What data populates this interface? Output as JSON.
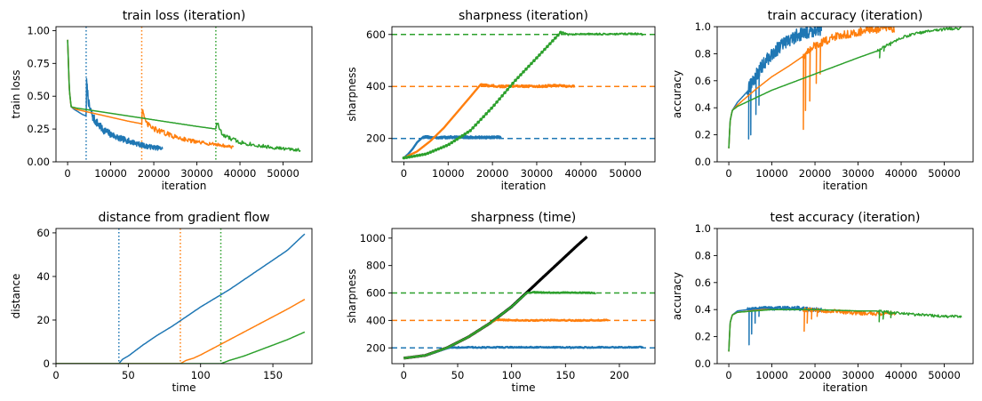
{
  "colors": {
    "blue": "#1f77b4",
    "orange": "#ff7f0e",
    "green": "#2ca02c",
    "black": "#000000"
  },
  "chart_data": [
    {
      "id": "train_loss",
      "type": "line",
      "title": "train loss (iteration)",
      "xlabel": "iteration",
      "ylabel": "train loss",
      "xlim": [
        -2700,
        56700
      ],
      "ylim": [
        0,
        1.03
      ],
      "xticks": [
        0,
        10000,
        20000,
        30000,
        40000,
        50000
      ],
      "yticks": [
        0.0,
        0.25,
        0.5,
        0.75,
        1.0
      ],
      "yfmt": 2,
      "vlines": [
        {
          "x": 4300,
          "color": "blue"
        },
        {
          "x": 17200,
          "color": "orange"
        },
        {
          "x": 34400,
          "color": "green"
        }
      ],
      "series": [
        {
          "color": "blue",
          "x": [
            0,
            400,
            800,
            1500,
            2500,
            3500,
            4300,
            4400,
            5000,
            6000,
            8000,
            10000,
            12000,
            15000,
            18000,
            20000,
            22000
          ],
          "y": [
            0.93,
            0.55,
            0.42,
            0.4,
            0.38,
            0.36,
            0.35,
            0.6,
            0.42,
            0.33,
            0.25,
            0.21,
            0.18,
            0.15,
            0.12,
            0.11,
            0.1
          ],
          "noise": 0.04,
          "noiseStart": 4300,
          "decay": 0.00012
        },
        {
          "color": "orange",
          "x": [
            0,
            400,
            800,
            2000,
            6000,
            10000,
            14000,
            17200,
            17300,
            18000,
            20000,
            25000,
            30000,
            35000,
            38500
          ],
          "y": [
            0.93,
            0.55,
            0.42,
            0.4,
            0.37,
            0.34,
            0.31,
            0.29,
            0.42,
            0.3,
            0.25,
            0.19,
            0.15,
            0.13,
            0.11
          ],
          "noise": 0.025,
          "noiseStart": 17200,
          "decay": 8e-05
        },
        {
          "color": "green",
          "x": [
            0,
            400,
            800,
            2000,
            10000,
            20000,
            30000,
            34400,
            34500,
            36000,
            40000,
            45000,
            50000,
            54000
          ],
          "y": [
            0.93,
            0.55,
            0.42,
            0.41,
            0.37,
            0.32,
            0.27,
            0.25,
            0.31,
            0.2,
            0.15,
            0.12,
            0.1,
            0.09
          ],
          "noise": 0.02,
          "noiseStart": 34400,
          "decay": 6e-05
        }
      ]
    },
    {
      "id": "sharpness_iter",
      "type": "line",
      "title": "sharpness (iteration)",
      "xlabel": "iteration",
      "ylabel": "sharpness",
      "xlim": [
        -2700,
        56700
      ],
      "ylim": [
        110,
        630
      ],
      "xticks": [
        0,
        10000,
        20000,
        30000,
        40000,
        50000
      ],
      "yticks": [
        200,
        400,
        600
      ],
      "yfmt": 0,
      "hlines": [
        {
          "y": 200,
          "color": "blue"
        },
        {
          "y": 400,
          "color": "orange"
        },
        {
          "y": 600,
          "color": "green"
        }
      ],
      "series": [
        {
          "color": "blue",
          "x": [
            0,
            1000,
            2000,
            3000,
            4300,
            5000,
            8000,
            12000,
            16000,
            20000,
            22000
          ],
          "y": [
            125,
            140,
            160,
            185,
            205,
            205,
            203,
            205,
            204,
            204,
            205
          ],
          "noise": 4,
          "noiseStart": 4300,
          "width": 2.4
        },
        {
          "color": "orange",
          "x": [
            0,
            3000,
            6000,
            9000,
            12000,
            15000,
            17200,
            18000,
            22000,
            26000,
            30000,
            34000,
            38500
          ],
          "y": [
            125,
            150,
            190,
            240,
            300,
            360,
            405,
            405,
            400,
            402,
            400,
            403,
            400
          ],
          "noise": 4,
          "noiseStart": 17200,
          "width": 2.4
        },
        {
          "color": "green",
          "x": [
            0,
            5000,
            10000,
            15000,
            20000,
            25000,
            30000,
            34400,
            35500,
            37000,
            42000,
            47000,
            52000,
            54000
          ],
          "y": [
            125,
            140,
            175,
            230,
            320,
            420,
            510,
            590,
            610,
            600,
            602,
            601,
            603,
            600
          ],
          "noise": 3,
          "noiseStart": 35500,
          "width": 1.8,
          "dotted": true,
          "dottedEnd": 35500
        }
      ]
    },
    {
      "id": "train_acc",
      "type": "line",
      "title": "train accuracy (iteration)",
      "xlabel": "iteration",
      "ylabel": "accuracy",
      "xlim": [
        -2700,
        56700
      ],
      "ylim": [
        0,
        1.0
      ],
      "xticks": [
        0,
        10000,
        20000,
        30000,
        40000,
        50000
      ],
      "yticks": [
        0.0,
        0.2,
        0.4,
        0.6,
        0.8,
        1.0
      ],
      "yfmt": 1,
      "series": [
        {
          "color": "blue",
          "x": [
            0,
            300,
            800,
            2000,
            4300,
            6000,
            8000,
            10000,
            13000,
            16000,
            19000,
            21500
          ],
          "y": [
            0.1,
            0.3,
            0.38,
            0.44,
            0.52,
            0.62,
            0.72,
            0.8,
            0.88,
            0.94,
            0.97,
            0.98
          ],
          "noise": 0.05,
          "noiseStart": 4300,
          "dips": [
            [
              4600,
              0.17
            ],
            [
              5100,
              0.2
            ],
            [
              6300,
              0.35
            ],
            [
              7000,
              0.42
            ]
          ]
        },
        {
          "color": "orange",
          "x": [
            0,
            300,
            800,
            2000,
            6000,
            10000,
            14000,
            17200,
            20000,
            25000,
            30000,
            35000,
            38500
          ],
          "y": [
            0.1,
            0.3,
            0.38,
            0.42,
            0.53,
            0.63,
            0.71,
            0.78,
            0.86,
            0.93,
            0.96,
            0.985,
            0.99
          ],
          "noise": 0.03,
          "noiseStart": 17200,
          "dips": [
            [
              17300,
              0.24
            ],
            [
              17800,
              0.38
            ],
            [
              18800,
              0.45
            ],
            [
              20300,
              0.58
            ],
            [
              21200,
              0.65
            ]
          ]
        },
        {
          "color": "green",
          "x": [
            0,
            300,
            800,
            2000,
            10000,
            20000,
            30000,
            34400,
            40000,
            45000,
            50000,
            54000
          ],
          "y": [
            0.1,
            0.3,
            0.38,
            0.41,
            0.53,
            0.65,
            0.77,
            0.82,
            0.92,
            0.96,
            0.98,
            0.99
          ],
          "noise": 0.01,
          "noiseStart": 34400,
          "dips": [
            [
              35000,
              0.77
            ],
            [
              36000,
              0.82
            ],
            [
              37500,
              0.86
            ]
          ]
        }
      ]
    },
    {
      "id": "distance",
      "type": "line",
      "title": "distance from gradient flow",
      "xlabel": "time",
      "ylabel": "distance",
      "xlim": [
        0,
        177
      ],
      "ylim": [
        0,
        62
      ],
      "xticks": [
        0,
        50,
        100,
        150
      ],
      "yticks": [
        0,
        20,
        40,
        60
      ],
      "yfmt": 0,
      "vlines": [
        {
          "x": 43.5,
          "color": "blue"
        },
        {
          "x": 86,
          "color": "orange"
        },
        {
          "x": 114,
          "color": "green"
        }
      ],
      "series": [
        {
          "color": "blue",
          "x": [
            0,
            43.5,
            46,
            50,
            55,
            60,
            70,
            80,
            90,
            100,
            110,
            120,
            130,
            140,
            150,
            160,
            172
          ],
          "y": [
            0,
            0,
            2,
            3.5,
            6,
            8.5,
            13,
            17,
            21.5,
            26,
            30,
            34,
            38.5,
            43,
            47.5,
            52,
            59.5
          ]
        },
        {
          "color": "orange",
          "x": [
            0,
            86,
            90,
            95,
            100,
            110,
            120,
            130,
            140,
            150,
            160,
            172
          ],
          "y": [
            0,
            0,
            1.5,
            2.5,
            4,
            7.5,
            11,
            14.5,
            18,
            21.5,
            25,
            29.5
          ]
        },
        {
          "color": "green",
          "x": [
            0,
            114,
            120,
            130,
            140,
            150,
            160,
            172
          ],
          "y": [
            0,
            0,
            1.5,
            3.5,
            6,
            8.5,
            11,
            14.5
          ]
        }
      ]
    },
    {
      "id": "sharpness_time",
      "type": "line",
      "title": "sharpness (time)",
      "xlabel": "time",
      "ylabel": "sharpness",
      "xlim": [
        -11,
        233
      ],
      "ylim": [
        85,
        1070
      ],
      "xticks": [
        0,
        50,
        100,
        150,
        200
      ],
      "yticks": [
        200,
        400,
        600,
        800,
        1000
      ],
      "yfmt": 0,
      "hlines": [
        {
          "y": 200,
          "color": "blue"
        },
        {
          "y": 400,
          "color": "orange"
        },
        {
          "y": 600,
          "color": "green"
        }
      ],
      "series": [
        {
          "color": "black",
          "x": [
            0,
            20,
            40,
            60,
            80,
            100,
            115,
            130,
            145,
            160,
            170
          ],
          "y": [
            125,
            145,
            200,
            280,
            380,
            500,
            610,
            720,
            830,
            940,
            1010
          ],
          "width": 3.2
        },
        {
          "color": "blue",
          "x": [
            0,
            20,
            40,
            43.5,
            60,
            80,
            100,
            130,
            160,
            190,
            222
          ],
          "y": [
            125,
            145,
            196,
            203,
            204,
            203,
            205,
            204,
            203,
            204,
            205
          ],
          "noise": 4,
          "noiseStart": 43.5,
          "width": 2.4
        },
        {
          "color": "orange",
          "x": [
            0,
            20,
            40,
            60,
            80,
            86,
            100,
            120,
            140,
            160,
            190
          ],
          "y": [
            125,
            145,
            200,
            280,
            380,
            405,
            402,
            400,
            403,
            400,
            402
          ],
          "noise": 4,
          "noiseStart": 86,
          "width": 2.4
        },
        {
          "color": "green",
          "x": [
            0,
            20,
            40,
            60,
            80,
            100,
            114,
            120,
            140,
            160,
            178
          ],
          "y": [
            125,
            145,
            200,
            280,
            380,
            500,
            600,
            605,
            602,
            603,
            600
          ],
          "noise": 3,
          "noiseStart": 114,
          "width": 2.4
        }
      ]
    },
    {
      "id": "test_acc",
      "type": "line",
      "title": "test accuracy (iteration)",
      "xlabel": "iteration",
      "ylabel": "accuracy",
      "xlim": [
        -2700,
        56700
      ],
      "ylim": [
        0,
        1.0
      ],
      "xticks": [
        0,
        10000,
        20000,
        30000,
        40000,
        50000
      ],
      "yticks": [
        0.0,
        0.2,
        0.4,
        0.6,
        0.8,
        1.0
      ],
      "yfmt": 1,
      "series": [
        {
          "color": "blue",
          "x": [
            0,
            300,
            800,
            2000,
            4300,
            8000,
            12000,
            16000,
            19000,
            21500
          ],
          "y": [
            0.09,
            0.3,
            0.36,
            0.39,
            0.4,
            0.41,
            0.41,
            0.41,
            0.4,
            0.4
          ],
          "noise": 0.015,
          "noiseStart": 4300,
          "dips": [
            [
              4700,
              0.14
            ],
            [
              5300,
              0.22
            ],
            [
              6100,
              0.3
            ],
            [
              7000,
              0.35
            ]
          ]
        },
        {
          "color": "orange",
          "x": [
            0,
            300,
            800,
            2000,
            8000,
            14000,
            17200,
            22000,
            28000,
            33000,
            38500
          ],
          "y": [
            0.09,
            0.3,
            0.36,
            0.38,
            0.4,
            0.4,
            0.4,
            0.39,
            0.38,
            0.37,
            0.37
          ],
          "noise": 0.015,
          "noiseStart": 17200,
          "dips": [
            [
              17500,
              0.24
            ],
            [
              18200,
              0.3
            ],
            [
              19200,
              0.33
            ],
            [
              20500,
              0.35
            ]
          ]
        },
        {
          "color": "green",
          "x": [
            0,
            300,
            800,
            2000,
            10000,
            20000,
            30000,
            34400,
            40000,
            45000,
            50000,
            54000
          ],
          "y": [
            0.09,
            0.3,
            0.36,
            0.38,
            0.4,
            0.4,
            0.39,
            0.39,
            0.37,
            0.36,
            0.35,
            0.35
          ],
          "noise": 0.01,
          "noiseStart": 34400,
          "dips": [
            [
              34900,
              0.31
            ],
            [
              35800,
              0.33
            ],
            [
              37600,
              0.34
            ]
          ]
        }
      ]
    }
  ]
}
